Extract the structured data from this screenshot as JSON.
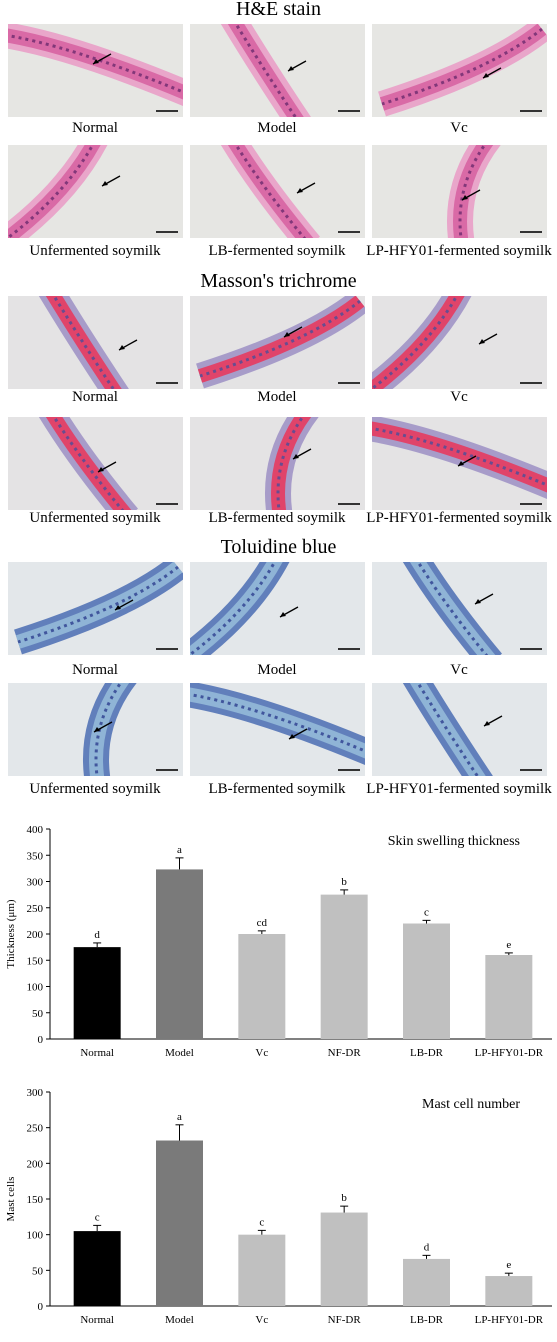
{
  "sections": [
    {
      "title": "H&E stain",
      "stain": "he",
      "rows": [
        [
          "Normal",
          "Model",
          "Vc"
        ],
        [
          "Unfermented soymilk",
          "LB-fermented soymilk",
          "LP-HFY01-fermented soymilk"
        ]
      ]
    },
    {
      "title": "Masson's trichrome",
      "stain": "masson",
      "rows": [
        [
          "Normal",
          "Model",
          "Vc"
        ],
        [
          "Unfermented soymilk",
          "LB-fermented soymilk",
          "LP-HFY01-fermented soymilk"
        ]
      ]
    },
    {
      "title": "Toluidine blue",
      "stain": "toluidine",
      "rows": [
        [
          "Normal",
          "Model",
          "Vc"
        ],
        [
          "Unfermented soymilk",
          "LB-fermented soymilk",
          "LP-HFY01-fermented soymilk"
        ]
      ]
    }
  ],
  "stain_colors": {
    "he": {
      "bg": "#e6e6e3",
      "band": "#d96aa6",
      "band2": "#e99ac6",
      "dark": "#6b2a6e"
    },
    "masson": {
      "bg": "#e4e3e4",
      "band": "#e0446a",
      "band2": "#9c8fc4",
      "dark": "#4a4f9a"
    },
    "toluidine": {
      "bg": "#e3e7ea",
      "band": "#8fb4d6",
      "band2": "#4a6cb3",
      "dark": "#2d3f8f"
    }
  },
  "chart_data": [
    {
      "type": "bar",
      "title": "Skin swelling thickness",
      "xlabel": "",
      "ylabel": "Thickness (μm)",
      "categories": [
        "Normal",
        "Model",
        "Vc",
        "NF-DR",
        "LB-DR",
        "LP-HFY01-DR"
      ],
      "values": [
        175,
        323,
        200,
        275,
        220,
        160
      ],
      "errors": [
        8,
        22,
        6,
        9,
        6,
        4
      ],
      "letters": [
        "d",
        "a",
        "cd",
        "b",
        "c",
        "e"
      ],
      "colors": [
        "#000000",
        "#7a7a7a",
        "#c0c0c0",
        "#c0c0c0",
        "#c0c0c0",
        "#c0c0c0"
      ],
      "ylim": [
        0,
        400
      ],
      "yticks": [
        0,
        50,
        100,
        150,
        200,
        250,
        300,
        350,
        400
      ]
    },
    {
      "type": "bar",
      "title": "Mast cell number",
      "xlabel": "",
      "ylabel": "Mast cells",
      "categories": [
        "Normal",
        "Model",
        "Vc",
        "NF-DR",
        "LB-DR",
        "LP-HFY01-DR"
      ],
      "values": [
        105,
        232,
        100,
        131,
        66,
        42
      ],
      "errors": [
        8,
        22,
        6,
        9,
        5,
        4
      ],
      "letters": [
        "c",
        "a",
        "c",
        "b",
        "d",
        "e"
      ],
      "colors": [
        "#000000",
        "#7a7a7a",
        "#c0c0c0",
        "#c0c0c0",
        "#c0c0c0",
        "#c0c0c0"
      ],
      "ylim": [
        0,
        300
      ],
      "yticks": [
        0,
        50,
        100,
        150,
        200,
        250,
        300
      ]
    }
  ]
}
